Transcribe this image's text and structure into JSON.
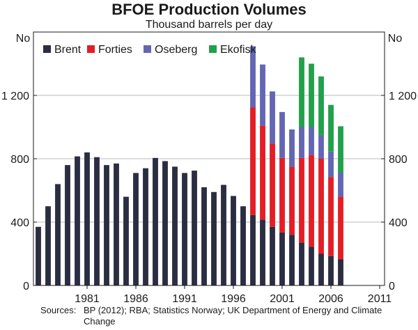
{
  "chart_data": {
    "type": "bar",
    "stacked": true,
    "title": "BFOE Production Volumes",
    "subtitle": "Thousand barrels per day",
    "left_unit": "No",
    "right_unit": "No",
    "ylim": [
      0,
      1600
    ],
    "yticks": [
      0,
      400,
      800,
      1200
    ],
    "ytick_labels": [
      "0",
      "400",
      "800",
      "1 200"
    ],
    "xtick_labels": [
      "1981",
      "1986",
      "1991",
      "1996",
      "2001",
      "2006",
      "2011"
    ],
    "xtick_years": [
      1981,
      1986,
      1991,
      1996,
      2001,
      2006,
      2011
    ],
    "categories": [
      1976,
      1977,
      1978,
      1979,
      1980,
      1981,
      1982,
      1983,
      1984,
      1985,
      1986,
      1987,
      1988,
      1989,
      1990,
      1991,
      1992,
      1993,
      1994,
      1995,
      1996,
      1997,
      1998,
      1999,
      2000,
      2001,
      2002,
      2003,
      2004,
      2005,
      2006,
      2007,
      2008,
      2009,
      2010,
      2011
    ],
    "series": [
      {
        "name": "Brent",
        "color": "#2b2d42",
        "values": [
          370,
          500,
          640,
          760,
          815,
          840,
          810,
          760,
          770,
          560,
          710,
          740,
          805,
          785,
          750,
          710,
          725,
          620,
          590,
          635,
          565,
          500,
          445,
          415,
          370,
          335,
          320,
          270,
          245,
          200,
          185,
          165,
          0,
          0,
          0,
          0
        ]
      },
      {
        "name": "Forties",
        "color": "#e41e26",
        "values": [
          0,
          0,
          0,
          0,
          0,
          0,
          0,
          0,
          0,
          0,
          0,
          0,
          0,
          0,
          0,
          0,
          0,
          0,
          0,
          0,
          0,
          0,
          680,
          595,
          525,
          470,
          430,
          535,
          580,
          600,
          500,
          395,
          0,
          0,
          0,
          0
        ]
      },
      {
        "name": "Oseberg",
        "color": "#6266b3",
        "values": [
          0,
          0,
          0,
          0,
          0,
          0,
          0,
          0,
          0,
          0,
          0,
          0,
          0,
          0,
          0,
          0,
          0,
          0,
          0,
          0,
          0,
          0,
          385,
          385,
          330,
          290,
          235,
          195,
          175,
          150,
          160,
          150,
          0,
          0,
          0,
          0
        ]
      },
      {
        "name": "Ekofisk",
        "color": "#22a04b",
        "values": [
          0,
          0,
          0,
          0,
          0,
          0,
          0,
          0,
          0,
          0,
          0,
          0,
          0,
          0,
          0,
          0,
          0,
          0,
          0,
          0,
          0,
          0,
          0,
          0,
          0,
          0,
          0,
          440,
          400,
          370,
          295,
          295,
          0,
          0,
          0,
          0
        ]
      }
    ],
    "legend": [
      "Brent",
      "Forties",
      "Oseberg",
      "Ekofisk"
    ],
    "legend_position": "top-left",
    "source_label": "Sources:",
    "source_text": "BP (2012); RBA; Statistics Norway; UK Department of Energy and Climate Change"
  }
}
